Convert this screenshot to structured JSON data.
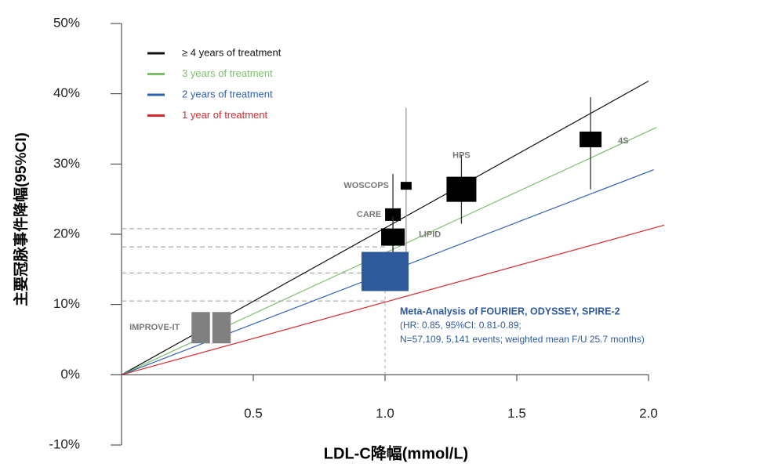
{
  "chart_data": {
    "type": "scatter",
    "x_label": "LDL-C降幅(mmol/L)",
    "y_label": "主要冠脉事件降幅(95%CI)",
    "xlim": [
      0,
      2.0
    ],
    "ylim": [
      -10,
      50
    ],
    "xticks": [
      0.5,
      {
        "value": 1,
        "label": "1.0"
      },
      1.5,
      {
        "value": 2,
        "label": "2.0"
      }
    ],
    "yticks": [
      {
        "value": -10,
        "label": "-10%"
      },
      {
        "value": 0,
        "label": "0%"
      },
      {
        "value": 10,
        "label": "10%"
      },
      {
        "value": 20,
        "label": "20%"
      },
      {
        "value": 30,
        "label": "30%"
      },
      {
        "value": 40,
        "label": "40%"
      },
      {
        "value": 50,
        "label": "50%"
      }
    ],
    "series": [
      {
        "name": "≥ 4 years of treatment",
        "color": "#111111",
        "x": [
          0,
          2.0
        ],
        "values": [
          0,
          41.8
        ]
      },
      {
        "name": "3 years of treatment",
        "color": "#7cbf6a",
        "x": [
          0,
          2.03
        ],
        "values": [
          0,
          35.2
        ]
      },
      {
        "name": "2 years of treatment",
        "color": "#2f62b4",
        "x": [
          0,
          2.02
        ],
        "values": [
          0,
          29.2
        ]
      },
      {
        "name": "1 year of treatment",
        "color": "#d42a2a",
        "x": [
          0,
          2.06
        ],
        "values": [
          0,
          21.3
        ]
      }
    ],
    "trials": {
      "names": [
        "IMPROVE-IT",
        "WOSCOPS",
        "CARE",
        "LIPID",
        "HPS",
        "4S"
      ],
      "x": [
        0.34,
        1.08,
        1.03,
        1.03,
        1.29,
        1.78
      ],
      "values": [
        6.7,
        26.9,
        22.8,
        19.6,
        26.4,
        33.5
      ],
      "ci_low": [
        4.5,
        16.6,
        17.0,
        16.5,
        21.5,
        26.4
      ],
      "ci_high": [
        9.0,
        38.0,
        28.6,
        22.5,
        31.3,
        39.5
      ],
      "colors": [
        "#808080",
        "#000000",
        "#000000",
        "#000000",
        "#000000",
        "#000000"
      ]
    },
    "reference_lines": {
      "values": [
        20.8,
        18.2,
        14.5,
        10.5
      ],
      "x_end": 1.0
    },
    "meta_analysis": {
      "x": 1.0,
      "value": 14.7,
      "color": "#2e5a9c",
      "title": "Meta-Analysis of FOURIER, ODYSSEY, SPIRE-2",
      "lines": [
        "(HR: 0.85, 95%CI: 0.81-0.89;",
        "N=57,109, 5,141 events; weighted mean F/U 25.7 months)"
      ]
    }
  }
}
